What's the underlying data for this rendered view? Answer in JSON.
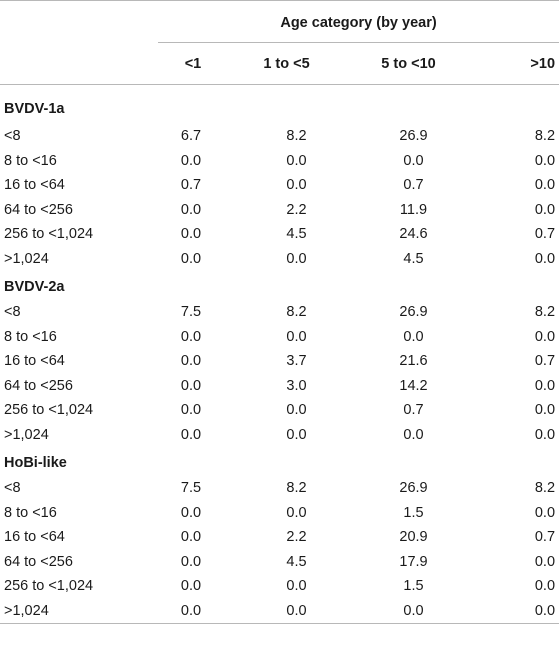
{
  "header": {
    "group_label": "Age category (by year)",
    "columns": [
      "<1",
      "1 to <5",
      "5 to <10",
      ">10"
    ]
  },
  "sections": [
    {
      "title": "BVDV-1a",
      "rows": [
        {
          "label": "<8",
          "values": [
            "6.7",
            "8.2",
            "26.9",
            "8.2"
          ]
        },
        {
          "label": "8 to <16",
          "values": [
            "0.0",
            "0.0",
            "0.0",
            "0.0"
          ]
        },
        {
          "label": "16 to <64",
          "values": [
            "0.7",
            "0.0",
            "0.7",
            "0.0"
          ]
        },
        {
          "label": "64 to <256",
          "values": [
            "0.0",
            "2.2",
            "11.9",
            "0.0"
          ]
        },
        {
          "label": "256 to <1,024",
          "values": [
            "0.0",
            "4.5",
            "24.6",
            "0.7"
          ]
        },
        {
          "label": ">1,024",
          "values": [
            "0.0",
            "0.0",
            "4.5",
            "0.0"
          ]
        }
      ]
    },
    {
      "title": "BVDV-2a",
      "rows": [
        {
          "label": "<8",
          "values": [
            "7.5",
            "8.2",
            "26.9",
            "8.2"
          ]
        },
        {
          "label": "8 to <16",
          "values": [
            "0.0",
            "0.0",
            "0.0",
            "0.0"
          ]
        },
        {
          "label": "16 to <64",
          "values": [
            "0.0",
            "3.7",
            "21.6",
            "0.7"
          ]
        },
        {
          "label": "64 to <256",
          "values": [
            "0.0",
            "3.0",
            "14.2",
            "0.0"
          ]
        },
        {
          "label": "256 to <1,024",
          "values": [
            "0.0",
            "0.0",
            "0.7",
            "0.0"
          ]
        },
        {
          "label": ">1,024",
          "values": [
            "0.0",
            "0.0",
            "0.0",
            "0.0"
          ]
        }
      ]
    },
    {
      "title": "HoBi-like",
      "rows": [
        {
          "label": "<8",
          "values": [
            "7.5",
            "8.2",
            "26.9",
            "8.2"
          ]
        },
        {
          "label": "8 to <16",
          "values": [
            "0.0",
            "0.0",
            "1.5",
            "0.0"
          ]
        },
        {
          "label": "16 to <64",
          "values": [
            "0.0",
            "2.2",
            "20.9",
            "0.7"
          ]
        },
        {
          "label": "64 to <256",
          "values": [
            "0.0",
            "4.5",
            "17.9",
            "0.0"
          ]
        },
        {
          "label": "256 to <1,024",
          "values": [
            "0.0",
            "0.0",
            "1.5",
            "0.0"
          ]
        },
        {
          "label": ">1,024",
          "values": [
            "0.0",
            "0.0",
            "0.0",
            "0.0"
          ]
        }
      ]
    }
  ]
}
